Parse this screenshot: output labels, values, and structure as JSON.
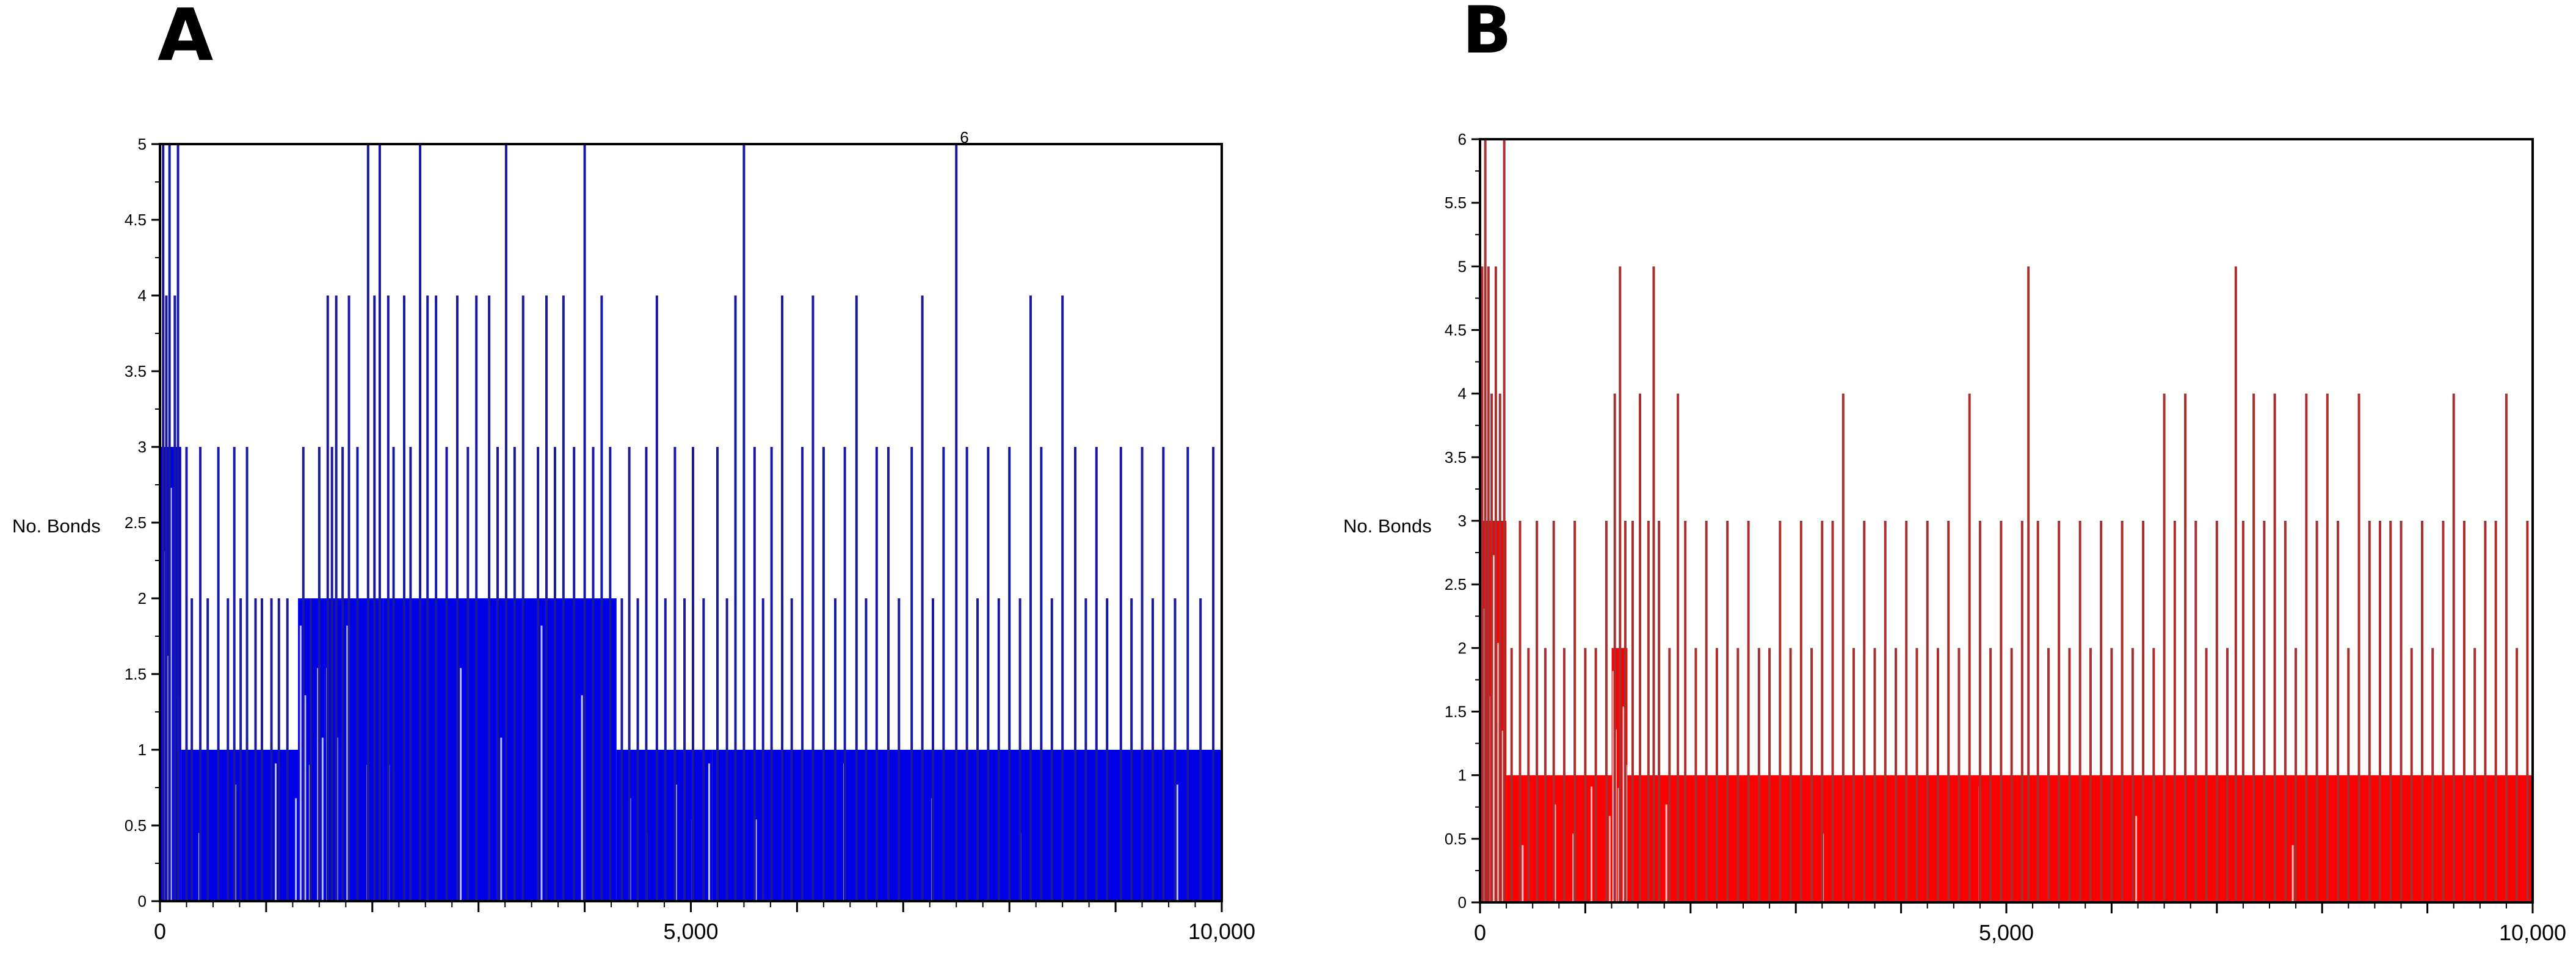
{
  "chart_data": [
    {
      "panel_label": "A",
      "type": "bar",
      "ylabel": "No. Bonds",
      "xlim": [
        0,
        10000
      ],
      "ylim": [
        0,
        5
      ],
      "x_ticks": [
        0,
        5000,
        10000
      ],
      "x_tick_labels": [
        "0",
        "5,000",
        "10,000"
      ],
      "y_ticks": [
        0,
        0.5,
        1,
        1.5,
        2,
        2.5,
        3,
        3.5,
        4,
        4.5,
        5
      ],
      "y_tick_labels": [
        "0",
        "0.5",
        "1",
        "1.5",
        "2",
        "2.5",
        "3",
        "3.5",
        "4",
        "4.5",
        "5"
      ],
      "annotations": [
        {
          "text": "6",
          "x": 7500,
          "y": 5
        }
      ],
      "color": "#0000e6",
      "segments": [
        {
          "x0": 0,
          "x1": 200,
          "base": 3,
          "spikes": [
            [
              30,
              5
            ],
            [
              60,
              4
            ],
            [
              90,
              5
            ],
            [
              140,
              4
            ],
            [
              170,
              5
            ]
          ]
        },
        {
          "x0": 200,
          "x1": 1300,
          "base": 1,
          "spikes": [
            [
              250,
              3
            ],
            [
              300,
              2
            ],
            [
              380,
              3
            ],
            [
              450,
              2
            ],
            [
              550,
              3
            ],
            [
              640,
              2
            ],
            [
              700,
              3
            ],
            [
              760,
              2
            ],
            [
              820,
              3
            ],
            [
              900,
              2
            ],
            [
              960,
              2
            ],
            [
              1050,
              2
            ],
            [
              1120,
              2
            ],
            [
              1200,
              2
            ]
          ]
        },
        {
          "x0": 1300,
          "x1": 1550,
          "base": 2,
          "spikes": [
            [
              1350,
              3
            ],
            [
              1420,
              2
            ],
            [
              1500,
              3
            ]
          ]
        },
        {
          "x0": 1550,
          "x1": 2100,
          "base": 2,
          "spikes": [
            [
              1580,
              4
            ],
            [
              1620,
              3
            ],
            [
              1660,
              4
            ],
            [
              1720,
              3
            ],
            [
              1780,
              4
            ],
            [
              1860,
              3
            ],
            [
              1960,
              5
            ],
            [
              2020,
              4
            ],
            [
              2070,
              5
            ]
          ]
        },
        {
          "x0": 2100,
          "x1": 4300,
          "base": 2,
          "spikes": [
            [
              2150,
              4
            ],
            [
              2200,
              3
            ],
            [
              2300,
              4
            ],
            [
              2360,
              3
            ],
            [
              2450,
              5
            ],
            [
              2520,
              4
            ],
            [
              2600,
              4
            ],
            [
              2700,
              3
            ],
            [
              2800,
              4
            ],
            [
              2900,
              3
            ],
            [
              2980,
              4
            ],
            [
              3100,
              4
            ],
            [
              3180,
              3
            ],
            [
              3260,
              5
            ],
            [
              3340,
              3
            ],
            [
              3420,
              4
            ],
            [
              3560,
              3
            ],
            [
              3640,
              4
            ],
            [
              3720,
              3
            ],
            [
              3800,
              4
            ],
            [
              3900,
              3
            ],
            [
              4000,
              5
            ],
            [
              4080,
              3
            ],
            [
              4160,
              4
            ],
            [
              4240,
              3
            ]
          ]
        },
        {
          "x0": 4300,
          "x1": 5200,
          "base": 1,
          "spikes": [
            [
              4350,
              2
            ],
            [
              4420,
              3
            ],
            [
              4500,
              2
            ],
            [
              4580,
              3
            ],
            [
              4680,
              4
            ],
            [
              4760,
              2
            ],
            [
              4850,
              3
            ],
            [
              4940,
              2
            ],
            [
              5020,
              3
            ],
            [
              5120,
              2
            ]
          ]
        },
        {
          "x0": 5200,
          "x1": 10000,
          "base": 1,
          "spikes": [
            [
              5250,
              3
            ],
            [
              5340,
              2
            ],
            [
              5420,
              4
            ],
            [
              5500,
              5
            ],
            [
              5600,
              3
            ],
            [
              5680,
              2
            ],
            [
              5760,
              3
            ],
            [
              5860,
              4
            ],
            [
              5950,
              2
            ],
            [
              6050,
              3
            ],
            [
              6150,
              4
            ],
            [
              6250,
              3
            ],
            [
              6360,
              2
            ],
            [
              6450,
              3
            ],
            [
              6560,
              4
            ],
            [
              6650,
              2
            ],
            [
              6750,
              3
            ],
            [
              6860,
              3
            ],
            [
              6960,
              2
            ],
            [
              7080,
              3
            ],
            [
              7180,
              4
            ],
            [
              7280,
              2
            ],
            [
              7380,
              3
            ],
            [
              7500,
              5
            ],
            [
              7600,
              3
            ],
            [
              7700,
              2
            ],
            [
              7800,
              3
            ],
            [
              7900,
              2
            ],
            [
              8000,
              3
            ],
            [
              8100,
              2
            ],
            [
              8200,
              4
            ],
            [
              8300,
              3
            ],
            [
              8400,
              2
            ],
            [
              8500,
              4
            ],
            [
              8620,
              3
            ],
            [
              8720,
              2
            ],
            [
              8820,
              3
            ],
            [
              8920,
              2
            ],
            [
              9050,
              3
            ],
            [
              9150,
              2
            ],
            [
              9250,
              3
            ],
            [
              9350,
              2
            ],
            [
              9450,
              3
            ],
            [
              9560,
              2
            ],
            [
              9680,
              3
            ],
            [
              9800,
              2
            ],
            [
              9920,
              3
            ]
          ]
        }
      ]
    },
    {
      "panel_label": "B",
      "type": "bar",
      "ylabel": "No. Bonds",
      "xlim": [
        0,
        10000
      ],
      "ylim": [
        0,
        6
      ],
      "x_ticks": [
        0,
        5000,
        10000
      ],
      "x_tick_labels": [
        "0",
        "5,000",
        "10,000"
      ],
      "y_ticks": [
        0,
        0.5,
        1,
        1.5,
        2,
        2.5,
        3,
        3.5,
        4,
        4.5,
        5,
        5.5,
        6
      ],
      "y_tick_labels": [
        "0",
        "0.5",
        "1",
        "1.5",
        "2",
        "2.5",
        "3",
        "3.5",
        "4",
        "4.5",
        "5",
        "5.5",
        "6"
      ],
      "annotations": [],
      "color": "#ff0000",
      "segments": [
        {
          "x0": 0,
          "x1": 250,
          "base": 3,
          "spikes": [
            [
              20,
              5
            ],
            [
              50,
              6
            ],
            [
              80,
              5
            ],
            [
              110,
              4
            ],
            [
              150,
              5
            ],
            [
              190,
              4
            ],
            [
              230,
              6
            ]
          ]
        },
        {
          "x0": 250,
          "x1": 1250,
          "base": 1,
          "spikes": [
            [
              300,
              2
            ],
            [
              380,
              3
            ],
            [
              460,
              2
            ],
            [
              540,
              3
            ],
            [
              620,
              2
            ],
            [
              700,
              3
            ],
            [
              800,
              2
            ],
            [
              900,
              3
            ],
            [
              1000,
              2
            ],
            [
              1100,
              2
            ],
            [
              1200,
              3
            ]
          ]
        },
        {
          "x0": 1250,
          "x1": 1400,
          "base": 2,
          "spikes": [
            [
              1280,
              4
            ],
            [
              1330,
              5
            ],
            [
              1380,
              3
            ]
          ]
        },
        {
          "x0": 1400,
          "x1": 10000,
          "base": 1,
          "spikes": [
            [
              1450,
              3
            ],
            [
              1520,
              4
            ],
            [
              1600,
              3
            ],
            [
              1650,
              5
            ],
            [
              1700,
              3
            ],
            [
              1800,
              2
            ],
            [
              1880,
              4
            ],
            [
              1950,
              3
            ],
            [
              2050,
              2
            ],
            [
              2150,
              3
            ],
            [
              2250,
              2
            ],
            [
              2350,
              3
            ],
            [
              2450,
              2
            ],
            [
              2550,
              3
            ],
            [
              2650,
              2
            ],
            [
              2750,
              2
            ],
            [
              2850,
              3
            ],
            [
              2950,
              2
            ],
            [
              3050,
              3
            ],
            [
              3150,
              2
            ],
            [
              3250,
              3
            ],
            [
              3350,
              3
            ],
            [
              3450,
              4
            ],
            [
              3550,
              2
            ],
            [
              3650,
              3
            ],
            [
              3750,
              2
            ],
            [
              3850,
              3
            ],
            [
              3950,
              2
            ],
            [
              4050,
              3
            ],
            [
              4150,
              2
            ],
            [
              4250,
              3
            ],
            [
              4350,
              2
            ],
            [
              4450,
              3
            ],
            [
              4550,
              2
            ],
            [
              4650,
              4
            ],
            [
              4750,
              3
            ],
            [
              4850,
              2
            ],
            [
              4950,
              3
            ],
            [
              5050,
              2
            ],
            [
              5150,
              3
            ],
            [
              5210,
              5
            ],
            [
              5300,
              3
            ],
            [
              5400,
              2
            ],
            [
              5500,
              3
            ],
            [
              5600,
              2
            ],
            [
              5700,
              3
            ],
            [
              5800,
              2
            ],
            [
              5900,
              3
            ],
            [
              6000,
              2
            ],
            [
              6100,
              3
            ],
            [
              6200,
              2
            ],
            [
              6300,
              3
            ],
            [
              6400,
              2
            ],
            [
              6500,
              4
            ],
            [
              6600,
              3
            ],
            [
              6700,
              4
            ],
            [
              6800,
              3
            ],
            [
              6900,
              2
            ],
            [
              7000,
              3
            ],
            [
              7100,
              2
            ],
            [
              7180,
              5
            ],
            [
              7250,
              3
            ],
            [
              7350,
              4
            ],
            [
              7450,
              3
            ],
            [
              7550,
              4
            ],
            [
              7650,
              3
            ],
            [
              7750,
              2
            ],
            [
              7850,
              4
            ],
            [
              7950,
              3
            ],
            [
              8050,
              4
            ],
            [
              8150,
              3
            ],
            [
              8250,
              2
            ],
            [
              8350,
              4
            ],
            [
              8450,
              3
            ],
            [
              8550,
              3
            ],
            [
              8650,
              3
            ],
            [
              8750,
              3
            ],
            [
              8850,
              2
            ],
            [
              8950,
              3
            ],
            [
              9050,
              2
            ],
            [
              9150,
              3
            ],
            [
              9250,
              4
            ],
            [
              9350,
              3
            ],
            [
              9450,
              2
            ],
            [
              9550,
              3
            ],
            [
              9650,
              3
            ],
            [
              9750,
              4
            ],
            [
              9850,
              2
            ],
            [
              9950,
              3
            ]
          ]
        }
      ]
    }
  ]
}
